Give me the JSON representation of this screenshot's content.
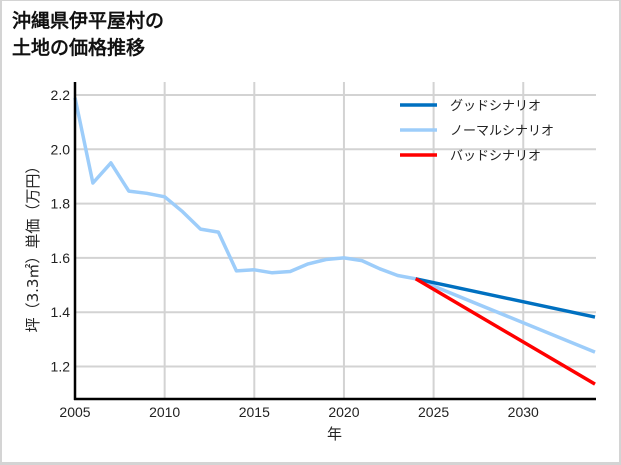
{
  "title": {
    "line1": "沖縄県伊平屋村の",
    "line2": "土地の価格推移"
  },
  "colors": {
    "good": "#0070C0",
    "normal": "#9DCDFA",
    "bad": "#FF0000",
    "grid": "#d3d3d3",
    "axis": "#000000"
  },
  "chart_data": {
    "type": "line",
    "title": "沖縄県伊平屋村の土地の価格推移",
    "xlabel": "年",
    "ylabel": "坪（3.3㎡）単価（万円）",
    "xlim": [
      2005,
      2034
    ],
    "ylim": [
      1.08,
      2.25
    ],
    "x_ticks": [
      2005,
      2010,
      2015,
      2020,
      2025,
      2030
    ],
    "y_ticks": [
      1.2,
      1.4,
      1.6,
      1.8,
      2.0,
      2.2
    ],
    "y_tick_labels": [
      "1.2",
      "1.4",
      "1.6",
      "1.8",
      "2.0",
      "2.2"
    ],
    "x_tick_labels": [
      "2005",
      "2010",
      "2015",
      "2020",
      "2025",
      "2030"
    ],
    "grid": true,
    "legend_position": "upper right",
    "series": [
      {
        "name": "グッドシナリオ",
        "key": "good",
        "x": [
          2024,
          2034
        ],
        "values": [
          1.523,
          1.382
        ]
      },
      {
        "name": "ノーマルシナリオ",
        "key": "normal",
        "x": [
          2005,
          2006,
          2007,
          2008,
          2009,
          2010,
          2011,
          2012,
          2013,
          2014,
          2015,
          2016,
          2017,
          2018,
          2019,
          2020,
          2021,
          2022,
          2023,
          2024,
          2034
        ],
        "values": [
          2.19,
          1.876,
          1.95,
          1.846,
          1.838,
          1.825,
          1.77,
          1.706,
          1.695,
          1.552,
          1.556,
          1.545,
          1.55,
          1.578,
          1.594,
          1.6,
          1.59,
          1.56,
          1.535,
          1.523,
          1.253
        ]
      },
      {
        "name": "バッドシナリオ",
        "key": "bad",
        "x": [
          2024,
          2034
        ],
        "values": [
          1.523,
          1.135
        ]
      }
    ]
  }
}
